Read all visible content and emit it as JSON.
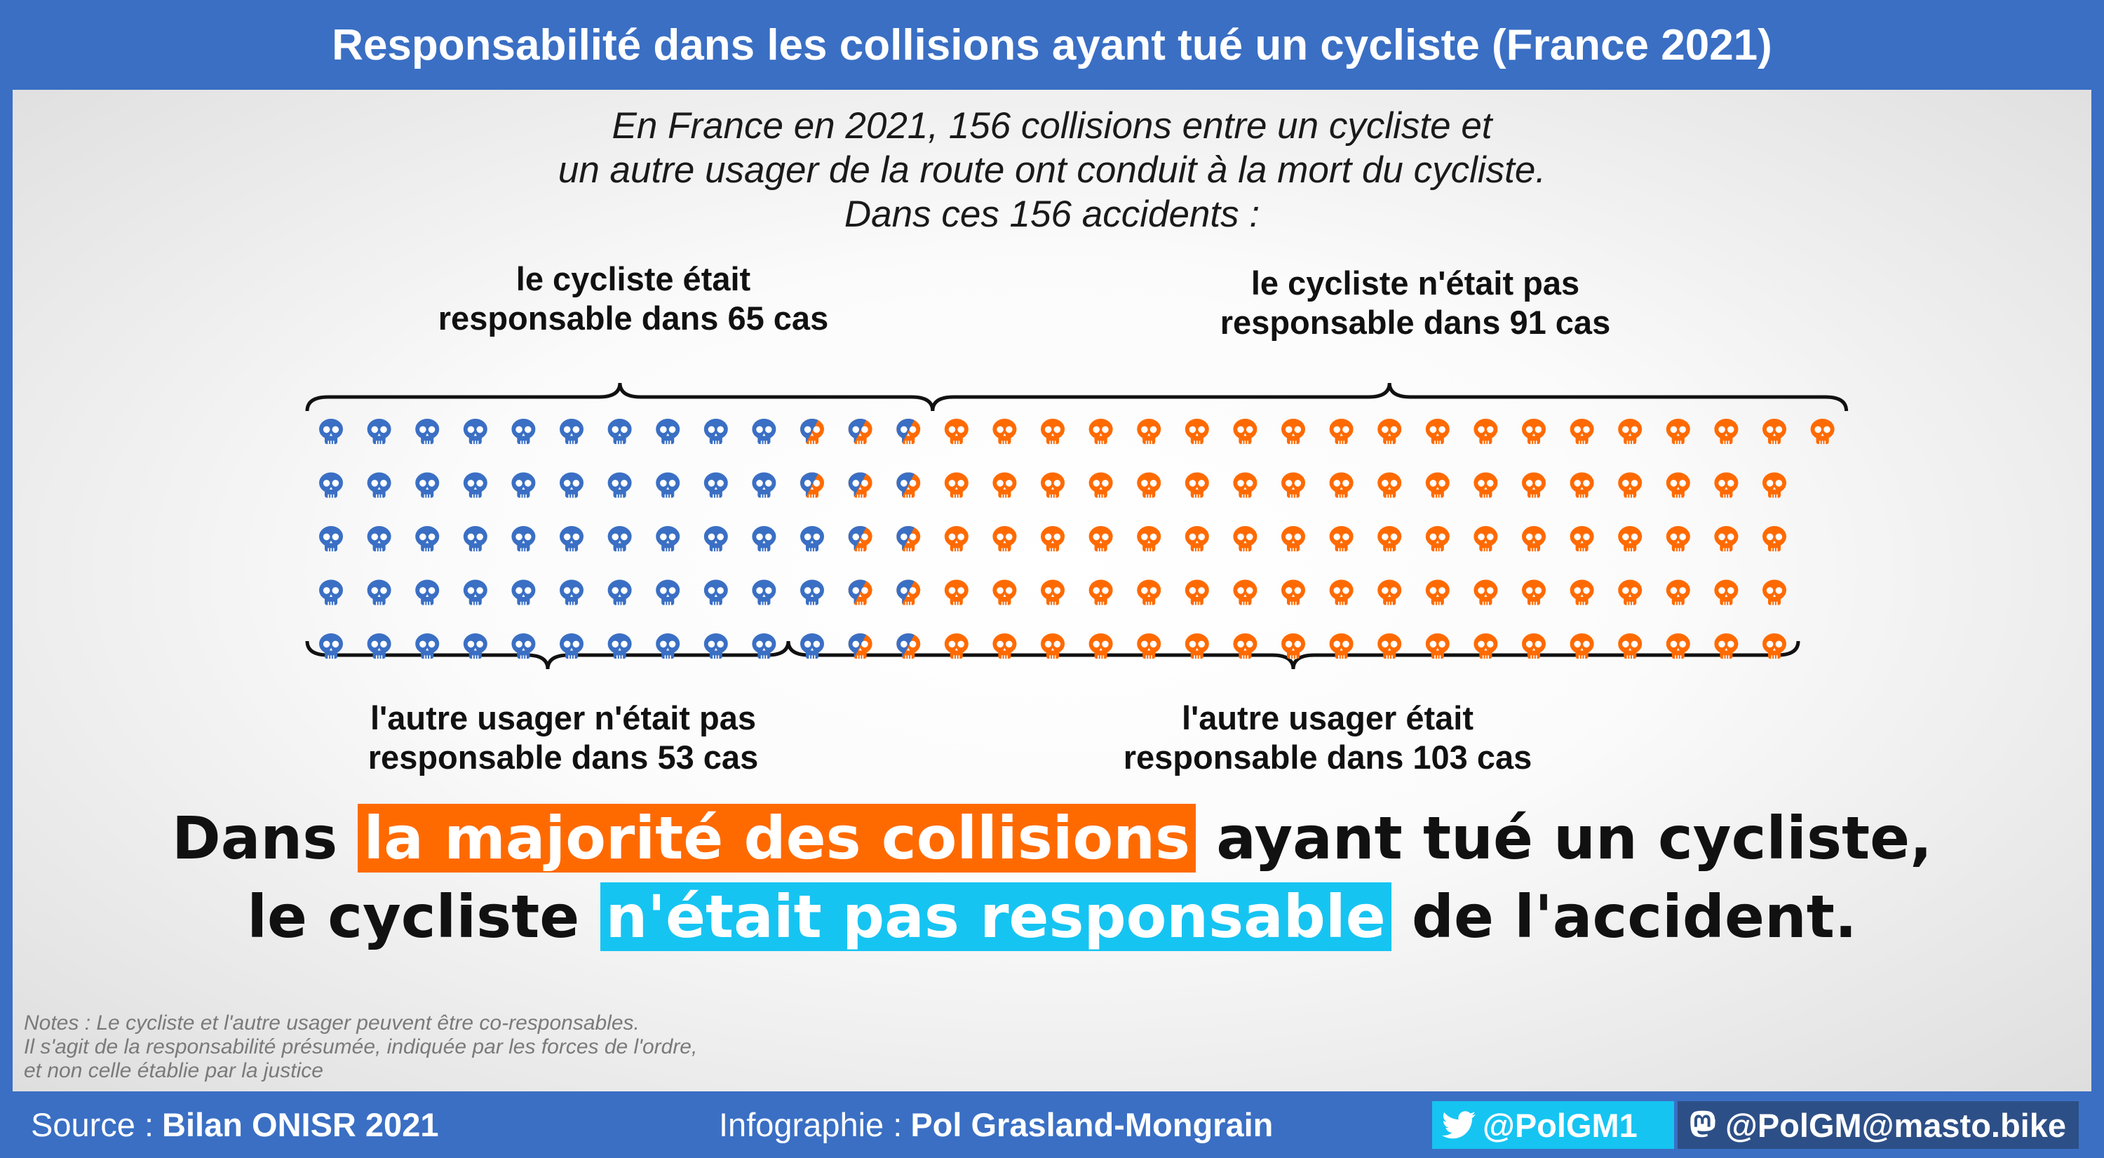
{
  "title": "Responsabilité dans les collisions ayant tué un cycliste (France 2021)",
  "intro": [
    "En France en 2021, 156 collisions entre un cycliste et",
    "un autre usager de la route ont conduit à la mort du cycliste.",
    "Dans ces 156 accidents :"
  ],
  "top_labels": {
    "left": [
      "le cycliste était",
      "responsable dans 65 cas"
    ],
    "right": [
      "le cycliste n'était pas",
      "responsable dans 91 cas"
    ]
  },
  "bottom_labels": {
    "left": [
      "l'autre usager n'était pas",
      "responsable dans 53 cas"
    ],
    "right": [
      "l'autre usager était",
      "responsable dans 103 cas"
    ]
  },
  "headline": {
    "line1_pre": "Dans ",
    "line1_highlight": "la majorité des collisions",
    "line1_post": " ayant tué un cycliste,",
    "line2_pre": "le cycliste ",
    "line2_highlight": "n'était pas responsable",
    "line2_post": " de l'accident."
  },
  "notes": [
    "Notes : Le cycliste et l'autre usager peuvent être co-responsables.",
    "Il s'agit de la responsabilité présumée, indiquée par les forces de l'ordre,",
    "et non celle établie par la justice"
  ],
  "footer": {
    "source_label": "Source :",
    "source_value": "Bilan ONISR 2021",
    "credit_label": "Infographie :",
    "credit_value": "Pol Grasland-Mongrain",
    "twitter": "@PolGM1",
    "mastodon": "@PolGM@masto.bike",
    "twitter_icon": "twitter-bird-icon",
    "mastodon_icon": "mastodon-icon"
  },
  "colors": {
    "cyclist_responsible": "#3a6fc4",
    "cyclist_not_responsible": "#ff6a00",
    "highlight_orange": "#ff6a00",
    "highlight_cyan": "#16c4f2",
    "twitter_bg": "#16c4f2",
    "mastodon_bg": "#2d4f87"
  },
  "chart_data": {
    "type": "pictogram",
    "total": 156,
    "rows": 5,
    "cyclist_responsible": 65,
    "cyclist_not_responsible": 91,
    "other_not_responsible": 53,
    "other_responsible": 103,
    "co_responsible": 12,
    "groups": [
      {
        "name": "le cycliste était responsable",
        "value": 65
      },
      {
        "name": "le cycliste n'était pas responsable",
        "value": 91
      },
      {
        "name": "l'autre usager n'était pas responsable",
        "value": 53
      },
      {
        "name": "l'autre usager était responsable",
        "value": 103
      }
    ]
  }
}
